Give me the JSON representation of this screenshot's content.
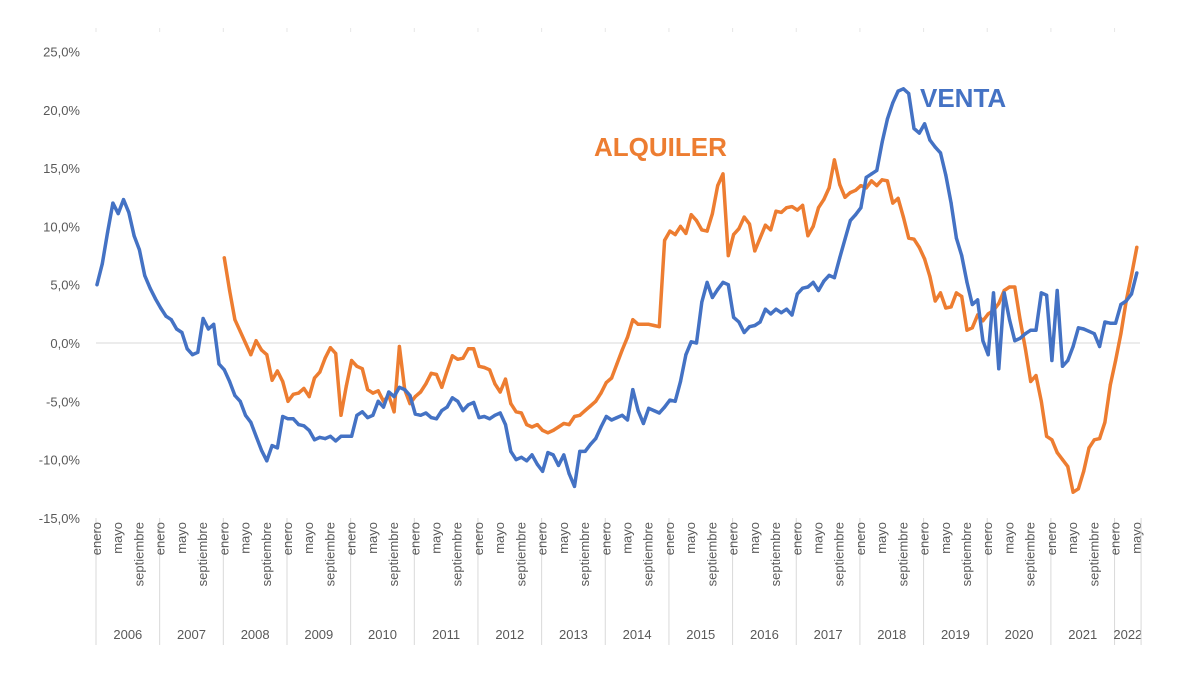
{
  "chart_data": {
    "type": "line",
    "title": "",
    "xlabel": "",
    "ylabel": "",
    "ylim": [
      -15,
      25
    ],
    "y_ticks": [
      "25,0%",
      "20,0%",
      "15,0%",
      "10,0%",
      "5,0%",
      "0,0%",
      "-5,0%",
      "-10,0%",
      "-15,0%"
    ],
    "y_tick_values": [
      25,
      20,
      15,
      10,
      5,
      0,
      -5,
      -10,
      -15
    ],
    "grid": "zero line only",
    "years": [
      "2006",
      "2007",
      "2008",
      "2009",
      "2010",
      "2011",
      "2012",
      "2013",
      "2014",
      "2015",
      "2016",
      "2017",
      "2018",
      "2019",
      "2020",
      "2021",
      "2022"
    ],
    "month_tick_labels": [
      "enero",
      "mayo",
      "septiembre"
    ],
    "frequency": "monthly, enero 2006 – mayo 2022",
    "series": [
      {
        "name": "VENTA",
        "color": "#4472C4",
        "values": [
          5.0,
          6.8,
          9.5,
          12.0,
          11.1,
          12.3,
          11.2,
          9.2,
          8.0,
          5.8,
          4.7,
          3.8,
          3.0,
          2.3,
          2.0,
          1.2,
          0.9,
          -0.5,
          -1.0,
          -0.8,
          2.1,
          1.2,
          1.6,
          -1.8,
          -2.3,
          -3.3,
          -4.5,
          -5.0,
          -6.2,
          -6.8,
          -8.0,
          -9.2,
          -10.1,
          -8.8,
          -9.0,
          -6.3,
          -6.5,
          -6.5,
          -7.0,
          -7.1,
          -7.5,
          -8.3,
          -8.1,
          -8.2,
          -8.0,
          -8.4,
          -8.0,
          -8.0,
          -8.0,
          -6.2,
          -5.9,
          -6.4,
          -6.2,
          -5.0,
          -5.5,
          -4.2,
          -4.6,
          -3.8,
          -4.0,
          -4.5,
          -6.1,
          -6.2,
          -6.0,
          -6.4,
          -6.5,
          -5.8,
          -5.5,
          -4.7,
          -5.0,
          -5.8,
          -5.3,
          -5.1,
          -6.4,
          -6.3,
          -6.5,
          -6.2,
          -6.0,
          -7.0,
          -9.3,
          -10.0,
          -9.8,
          -10.1,
          -9.6,
          -10.4,
          -11.0,
          -9.4,
          -9.6,
          -10.5,
          -9.6,
          -11.2,
          -12.3,
          -9.3,
          -9.3,
          -8.7,
          -8.2,
          -7.2,
          -6.3,
          -6.6,
          -6.4,
          -6.2,
          -6.6,
          -4.0,
          -5.8,
          -6.9,
          -5.6,
          -5.8,
          -6.0,
          -5.5,
          -4.9,
          -5.0,
          -3.3,
          -1.0,
          0.1,
          0.0,
          3.5,
          5.2,
          3.9,
          4.6,
          5.2,
          5.0,
          2.2,
          1.8,
          0.9,
          1.4,
          1.5,
          1.8,
          2.9,
          2.5,
          2.9,
          2.6,
          2.9,
          2.4,
          4.2,
          4.7,
          4.8,
          5.2,
          4.5,
          5.3,
          5.8,
          5.6,
          7.3,
          8.9,
          10.5,
          11.0,
          11.6,
          14.2,
          14.5,
          14.8,
          17.2,
          19.2,
          20.6,
          21.6,
          21.8,
          21.4,
          18.4,
          18.0,
          18.8,
          17.4,
          16.8,
          16.3,
          14.4,
          12.0,
          9.0,
          7.5,
          5.2,
          3.3,
          3.7,
          0.2,
          -1.0,
          4.3,
          -2.2,
          4.3,
          2.0,
          0.2,
          0.4,
          0.8,
          1.1,
          1.1,
          4.3,
          4.1,
          -1.5,
          4.5,
          -2.0,
          -1.5,
          -0.3,
          1.3,
          1.2,
          1.0,
          0.8,
          -0.3,
          1.8,
          1.7,
          1.7,
          3.3,
          3.6,
          4.2,
          6.0
        ]
      },
      {
        "name": "ALQUILER",
        "color": "#ED7D31",
        "values": [
          null,
          null,
          null,
          null,
          null,
          null,
          null,
          null,
          null,
          null,
          null,
          null,
          null,
          null,
          null,
          null,
          null,
          null,
          null,
          null,
          null,
          null,
          null,
          null,
          7.3,
          4.5,
          2.0,
          1.0,
          0.0,
          -1.0,
          0.2,
          -0.6,
          -1.0,
          -3.2,
          -2.4,
          -3.3,
          -5.0,
          -4.4,
          -4.3,
          -3.9,
          -4.6,
          -3.0,
          -2.5,
          -1.3,
          -0.4,
          -0.9,
          -6.2,
          -3.7,
          -1.5,
          -2.0,
          -2.2,
          -4.0,
          -4.3,
          -4.1,
          -5.0,
          -4.5,
          -5.9,
          -0.3,
          -4.0,
          -5.2,
          -4.6,
          -4.2,
          -3.5,
          -2.6,
          -2.7,
          -3.8,
          -2.4,
          -1.1,
          -1.4,
          -1.3,
          -0.5,
          -0.5,
          -2.0,
          -2.1,
          -2.3,
          -3.5,
          -4.2,
          -3.1,
          -5.2,
          -5.9,
          -6.0,
          -7.0,
          -7.2,
          -7.0,
          -7.5,
          -7.7,
          -7.5,
          -7.2,
          -6.9,
          -7.0,
          -6.3,
          -6.2,
          -5.8,
          -5.4,
          -5.0,
          -4.3,
          -3.4,
          -3.0,
          -1.8,
          -0.6,
          0.5,
          2.0,
          1.6,
          1.6,
          1.6,
          1.5,
          1.4,
          8.8,
          9.6,
          9.3,
          10.0,
          9.4,
          11.0,
          10.5,
          9.7,
          9.6,
          11.1,
          13.5,
          14.5,
          7.5,
          9.3,
          9.8,
          10.8,
          10.2,
          7.9,
          9.0,
          10.1,
          9.7,
          11.3,
          11.2,
          11.6,
          11.7,
          11.4,
          11.8,
          9.2,
          10.0,
          11.6,
          12.3,
          13.3,
          15.7,
          13.6,
          12.5,
          12.9,
          13.1,
          13.5,
          13.3,
          13.9,
          13.5,
          14.0,
          13.9,
          12.0,
          12.4,
          10.8,
          9.0,
          8.9,
          8.2,
          7.2,
          5.7,
          3.6,
          4.3,
          3.0,
          3.1,
          4.3,
          4.0,
          1.1,
          1.3,
          2.4,
          1.9,
          2.5,
          2.8,
          3.4,
          4.5,
          4.8,
          4.8,
          2.0,
          -0.5,
          -3.3,
          -2.8,
          -5.0,
          -8.0,
          -8.3,
          -9.4,
          -10.0,
          -10.6,
          -12.8,
          -12.5,
          -11.0,
          -9.0,
          -8.3,
          -8.2,
          -6.8,
          -3.6,
          -1.5,
          0.8,
          3.6,
          5.8,
          8.2
        ]
      }
    ],
    "annotations": [
      "ALQUILER",
      "VENTA"
    ]
  }
}
